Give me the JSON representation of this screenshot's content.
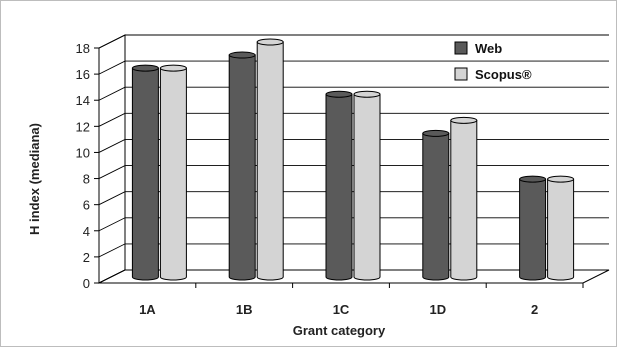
{
  "chart_data": {
    "type": "bar",
    "categories": [
      "1A",
      "1B",
      "1C",
      "1D",
      "2"
    ],
    "series": [
      {
        "name": "Web",
        "values": [
          16,
          17,
          14,
          11,
          7.5
        ],
        "color": "#5a5a5a"
      },
      {
        "name": "Scopus®",
        "values": [
          16,
          18,
          14,
          12,
          7.5
        ],
        "color": "#d4d4d4"
      }
    ],
    "title": "",
    "xlabel": "Grant category",
    "ylabel": "H index (mediana)",
    "ylim": [
      0,
      18
    ],
    "yticks": [
      0,
      2,
      4,
      6,
      8,
      10,
      12,
      14,
      16,
      18
    ],
    "grid": true,
    "legend": "top-right",
    "style": "3d-cylinder"
  }
}
